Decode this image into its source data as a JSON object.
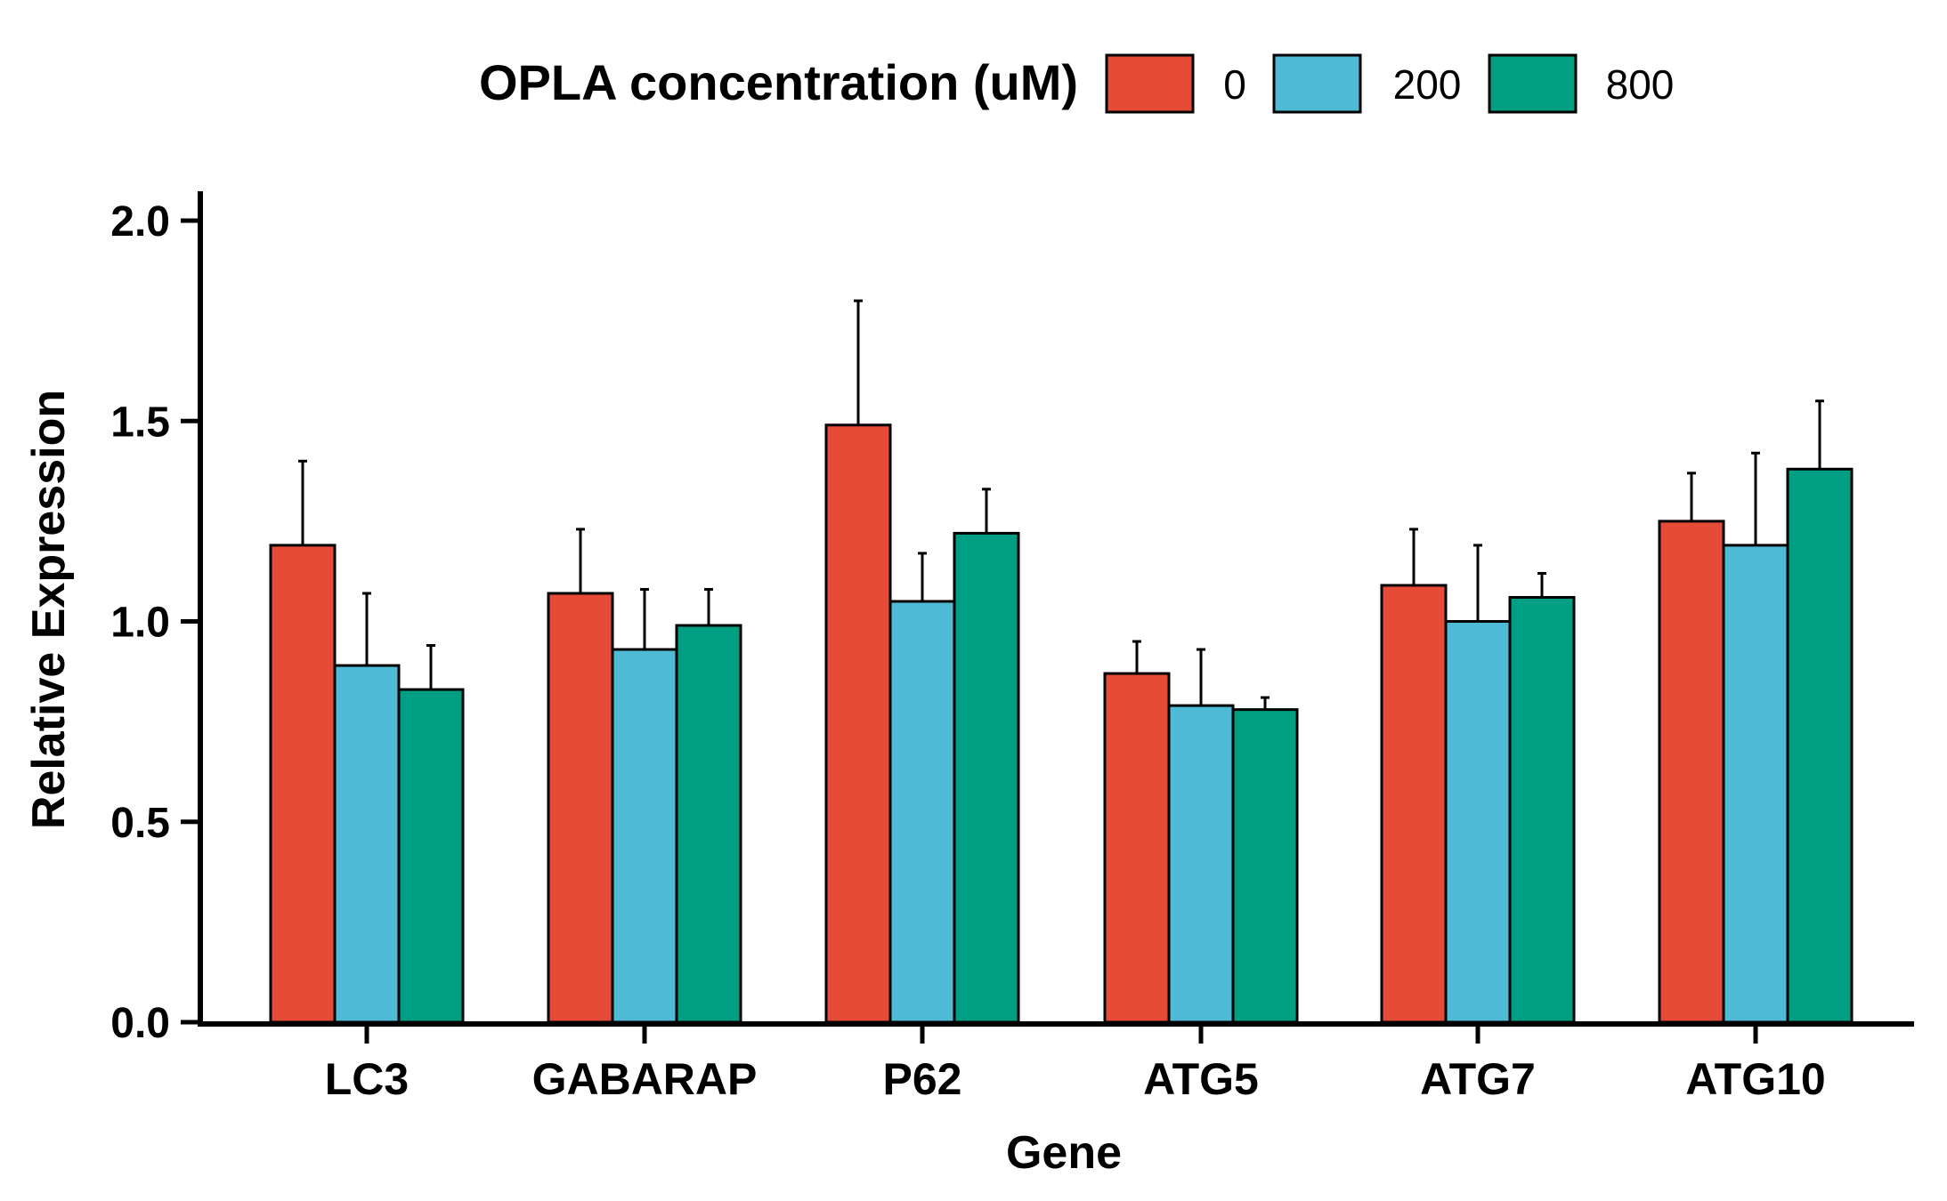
{
  "chart_data": {
    "type": "bar",
    "title": "",
    "xlabel": "Gene",
    "ylabel": "Relative Expression",
    "ylim": [
      0,
      2.0
    ],
    "yticks": [
      "0.0",
      "0.5",
      "1.0",
      "1.5",
      "2.0"
    ],
    "categories": [
      "LC3",
      "GABARAP",
      "P62",
      "ATG5",
      "ATG7",
      "ATG10"
    ],
    "legend": {
      "title": "OPLA concentration (uM)",
      "placement": "top-center"
    },
    "series": [
      {
        "name": "0",
        "color": "#E54B37",
        "values": [
          1.19,
          1.07,
          1.49,
          0.87,
          1.09,
          1.25
        ],
        "errors": [
          0.21,
          0.16,
          0.31,
          0.08,
          0.14,
          0.12
        ]
      },
      {
        "name": "200",
        "color": "#4EBAD6",
        "values": [
          0.89,
          0.93,
          1.05,
          0.79,
          1.0,
          1.19
        ],
        "errors": [
          0.18,
          0.15,
          0.12,
          0.14,
          0.19,
          0.23
        ]
      },
      {
        "name": "800",
        "color": "#009E82",
        "values": [
          0.83,
          0.99,
          1.22,
          0.78,
          1.06,
          1.38
        ],
        "errors": [
          0.11,
          0.09,
          0.11,
          0.03,
          0.06,
          0.17
        ]
      }
    ],
    "grid": false
  }
}
